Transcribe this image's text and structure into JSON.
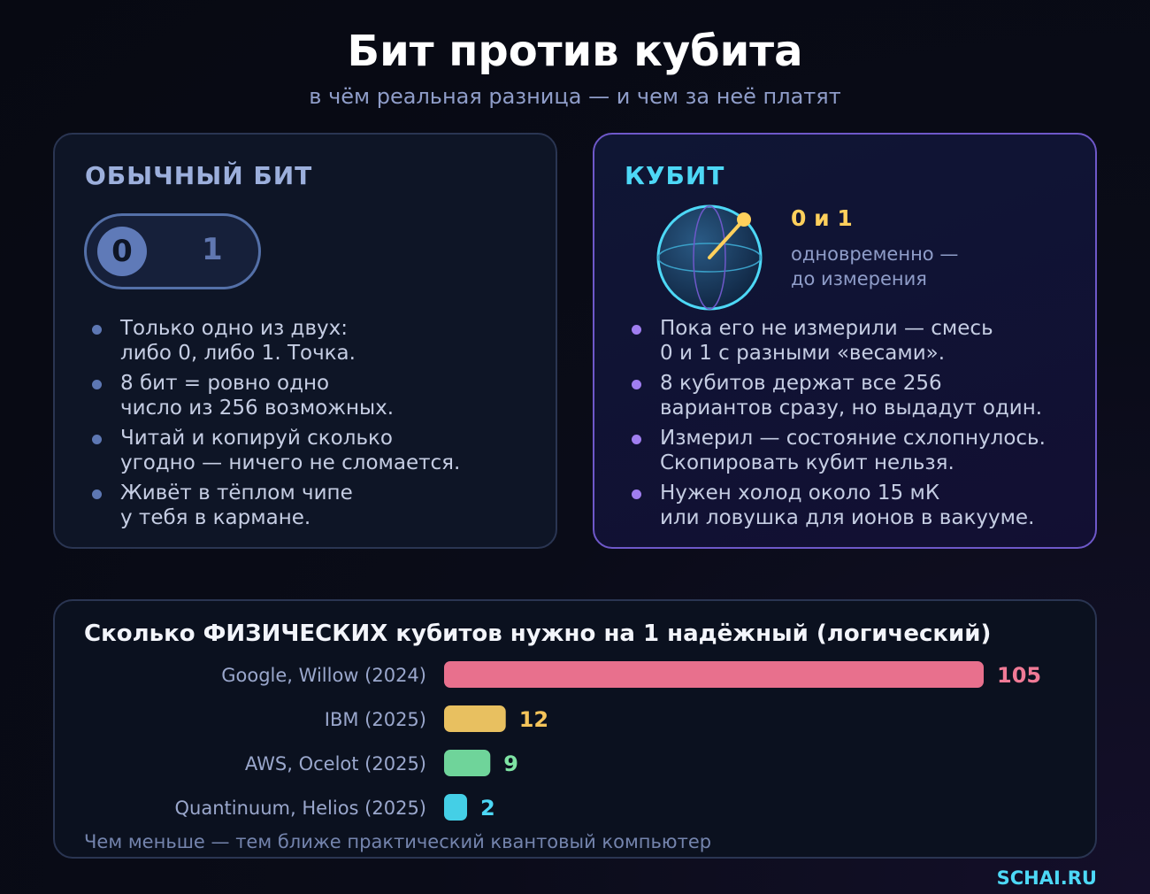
{
  "title": "Бит против кубита",
  "subtitle": "в чём реальная разница — и чем за неё платят",
  "bit": {
    "heading": "ОБЫЧНЫЙ БИТ",
    "toggle_zero": "0",
    "toggle_one": "1",
    "items": [
      "Только одно из двух:\nлибо 0, либо 1. Точка.",
      "8 бит = ровно одно\nчисло из 256 возможных.",
      "Читай и копируй сколько\nугодно — ничего не сломается.",
      "Живёт в тёплом чипе\nу тебя в кармане."
    ]
  },
  "qubit": {
    "heading": "КУБИТ",
    "state_label": "0 и 1",
    "state_note": "одновременно —\nдо измерения",
    "items": [
      "Пока его не измерили — смесь\n0 и 1 с разными «весами».",
      "8 кубитов держат все 256\nвариантов сразу, но выдадут один.",
      "Измерил — состояние схлопнулось.\nСкопировать кубит нельзя.",
      "Нужен холод около 15 мК\nили ловушка для ионов в вакууме."
    ]
  },
  "chart_data": {
    "type": "bar",
    "orientation": "horizontal",
    "title": "Сколько ФИЗИЧЕСКИХ кубитов нужно на 1 надёжный (логический)",
    "categories": [
      "Google, Willow (2024)",
      "IBM (2025)",
      "AWS, Ocelot (2025)",
      "Quantinuum, Helios (2025)"
    ],
    "values": [
      105,
      12,
      9,
      2
    ],
    "colors": [
      "#e8708d",
      "#e8c060",
      "#6fd49a",
      "#44cfe6"
    ],
    "value_colors": [
      "#f07a96",
      "#f5c45a",
      "#7ee3a4",
      "#4dd8f6"
    ],
    "xlim": [
      0,
      105
    ],
    "note": "Чем меньше — тем ближе практический квантовый компьютер"
  },
  "brand": "SCHAI.RU"
}
